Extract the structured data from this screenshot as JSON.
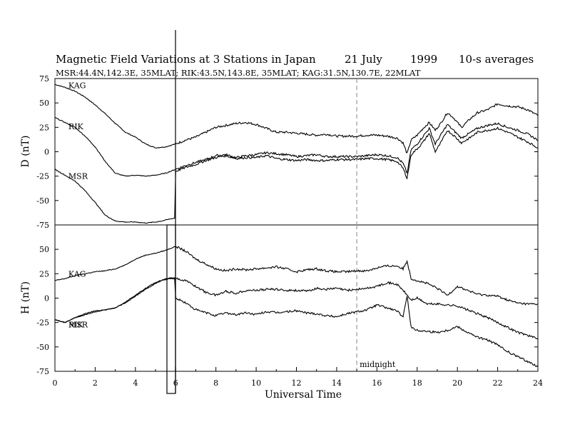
{
  "title": {
    "main": "Magnetic Field Variations at 3 Stations in Japan",
    "date": "21 July",
    "year": "1999",
    "averaging": "10-s averages"
  },
  "subtitle": "MSR:44.4N,142.3E, 35MLAT;   RIK:43.5N,143.8E, 35MLAT;   KAG:31.5N,130.7E, 22MLAT",
  "chart_data": [
    {
      "type": "line",
      "panel": "D",
      "ylabel": "D (nT)",
      "ylim": [
        -75,
        75
      ],
      "yticks": [
        75,
        50,
        25,
        0,
        -25,
        -50,
        -75
      ],
      "ytick_labels": [
        "75",
        "50",
        "25",
        "0",
        "-25",
        "-50",
        "-75"
      ],
      "xlim": [
        0,
        24
      ],
      "station_labels": [
        "KAG",
        "RIK",
        "MSR"
      ],
      "series": [
        {
          "name": "KAG",
          "x": [
            0,
            0.5,
            1,
            1.5,
            2,
            2.5,
            3,
            3.5,
            4,
            4.5,
            5,
            5.5,
            6,
            6.5,
            7,
            7.5,
            8,
            8.5,
            9,
            9.5,
            10,
            10.5,
            11,
            11.5,
            12,
            12.5,
            13,
            13.5,
            14,
            14.5,
            15,
            15.5,
            16,
            16.5,
            17,
            17.3,
            17.5,
            17.7,
            18,
            18.3,
            18.6,
            18.9,
            19.2,
            19.5,
            19.8,
            20.2,
            20.6,
            21,
            21.5,
            22,
            22.5,
            23,
            23.5,
            24
          ],
          "y": [
            69,
            66,
            62,
            56,
            48,
            39,
            29,
            20,
            15,
            8,
            4,
            5,
            8,
            12,
            15,
            20,
            25,
            27,
            29,
            30,
            28,
            24,
            20,
            20,
            19,
            18,
            17,
            18,
            16,
            16,
            16,
            17,
            17,
            16,
            14,
            9,
            -2,
            12,
            17,
            24,
            30,
            22,
            30,
            40,
            35,
            25,
            33,
            40,
            43,
            49,
            47,
            46,
            43,
            37
          ]
        },
        {
          "name": "RIK",
          "x": [
            0,
            0.5,
            1,
            1.5,
            2,
            2.5,
            3,
            3.5,
            4,
            4.5,
            5,
            5.5,
            6,
            6.5,
            7,
            7.5,
            8,
            8.5,
            9,
            9.5,
            10,
            10.5,
            11,
            11.5,
            12,
            12.5,
            13,
            13.5,
            14,
            14.5,
            15,
            15.5,
            16,
            16.5,
            17,
            17.3,
            17.5,
            17.7,
            18,
            18.3,
            18.6,
            18.9,
            19.2,
            19.5,
            19.8,
            20.2,
            20.6,
            21,
            21.5,
            22,
            22.5,
            23,
            23.5,
            24
          ],
          "y": [
            35,
            30,
            25,
            16,
            5,
            -10,
            -22,
            -25,
            -24,
            -25,
            -24,
            -22,
            -18,
            -14,
            -11,
            -8,
            -4,
            -3,
            -6,
            -4,
            -3,
            -1,
            -2,
            -3,
            -5,
            -4,
            -3,
            -5,
            -5,
            -5,
            -5,
            -4,
            -3,
            -4,
            -6,
            -12,
            -22,
            2,
            8,
            16,
            24,
            8,
            18,
            28,
            22,
            14,
            19,
            24,
            27,
            29,
            25,
            22,
            18,
            12
          ]
        },
        {
          "name": "MSR",
          "x": [
            0,
            0.5,
            1,
            1.5,
            2,
            2.5,
            3,
            3.5,
            4,
            4.5,
            5,
            5.3,
            5.5,
            5.7,
            5.95,
            6,
            6.5,
            7,
            7.5,
            8,
            8.5,
            9,
            9.5,
            10,
            10.5,
            11,
            11.5,
            12,
            12.5,
            13,
            13.5,
            14,
            14.5,
            15,
            15.5,
            16,
            16.5,
            17,
            17.3,
            17.5,
            17.7,
            18,
            18.3,
            18.6,
            18.9,
            19.2,
            19.5,
            19.8,
            20.2,
            20.6,
            21,
            21.5,
            22,
            22.5,
            23,
            23.5,
            24
          ],
          "y": [
            -18,
            -24,
            -30,
            -40,
            -52,
            -65,
            -71,
            -72,
            -72,
            -73,
            -72,
            -71,
            -70,
            -69,
            -68,
            -20,
            -16,
            -13,
            -9,
            -6,
            -4,
            -7,
            -6,
            -6,
            -4,
            -7,
            -8,
            -9,
            -8,
            -9,
            -9,
            -8,
            -8,
            -8,
            -7,
            -7,
            -8,
            -10,
            -17,
            -27,
            -3,
            3,
            10,
            19,
            0,
            10,
            22,
            17,
            9,
            14,
            20,
            22,
            24,
            20,
            15,
            10,
            4
          ]
        }
      ]
    },
    {
      "type": "line",
      "panel": "H",
      "ylabel": "H (nT)",
      "ylim": [
        -75,
        75
      ],
      "yticks": [
        75,
        50,
        25,
        0,
        -25,
        -50,
        -75
      ],
      "ytick_labels": [
        "",
        "50",
        "25",
        "0",
        "-25",
        "-50",
        "-75"
      ],
      "xlim": [
        0,
        24
      ],
      "xticks": [
        0,
        2,
        4,
        6,
        8,
        10,
        12,
        14,
        16,
        18,
        20,
        22,
        24
      ],
      "xtick_labels": [
        "0",
        "2",
        "4",
        "6",
        "8",
        "10",
        "12",
        "14",
        "16",
        "18",
        "20",
        "22",
        "24"
      ],
      "xlabel": "Universal Time",
      "station_labels": [
        "KAG",
        "MSR"
      ],
      "overlap_label": "RIK",
      "annotation": {
        "text": "midnight",
        "x": 15
      },
      "series": [
        {
          "name": "KAG",
          "x": [
            0,
            0.5,
            1,
            1.5,
            2,
            2.5,
            3,
            3.5,
            4,
            4.5,
            5,
            5.5,
            6,
            6.5,
            7,
            7.5,
            8,
            8.5,
            9,
            9.5,
            10,
            10.5,
            11,
            11.5,
            12,
            12.5,
            13,
            13.5,
            14,
            14.5,
            15,
            15.5,
            16,
            16.5,
            17,
            17.3,
            17.5,
            17.7,
            18,
            18.5,
            19,
            19.5,
            20,
            20.5,
            21,
            21.5,
            22,
            22.5,
            23,
            23.5,
            24
          ],
          "y": [
            18,
            20,
            23,
            25,
            27,
            28,
            30,
            34,
            40,
            44,
            46,
            49,
            53,
            48,
            40,
            35,
            30,
            28,
            30,
            29,
            30,
            31,
            32,
            30,
            27,
            29,
            30,
            28,
            27,
            27,
            28,
            28,
            31,
            33,
            33,
            30,
            38,
            20,
            18,
            15,
            10,
            3,
            12,
            8,
            4,
            3,
            2,
            -2,
            -5,
            -6,
            -6
          ]
        },
        {
          "name": "RIK",
          "x": [
            0,
            0.5,
            1,
            1.5,
            2,
            2.5,
            3,
            3.5,
            4,
            4.5,
            5,
            5.5,
            5.95,
            6,
            6.5,
            7,
            7.5,
            8,
            8.5,
            9,
            9.5,
            10,
            10.5,
            11,
            11.5,
            12,
            12.5,
            13,
            13.5,
            14,
            14.5,
            15,
            15.5,
            16,
            16.5,
            17,
            17.3,
            17.5,
            17.7,
            18,
            18.5,
            19,
            19.5,
            20,
            20.5,
            21,
            21.5,
            22,
            22.5,
            23,
            23.5,
            24
          ],
          "y": [
            -22,
            -25,
            -20,
            -16,
            -13,
            -12,
            -10,
            -4,
            3,
            10,
            16,
            20,
            21,
            20,
            18,
            12,
            6,
            3,
            7,
            5,
            8,
            8,
            9,
            9,
            8,
            8,
            7,
            10,
            9,
            10,
            8,
            9,
            10,
            12,
            16,
            14,
            8,
            3,
            -2,
            0,
            -6,
            -6,
            -7,
            -8,
            -12,
            -16,
            -20,
            -25,
            -30,
            -35,
            -38,
            -42
          ]
        },
        {
          "name": "MSR",
          "x": [
            0,
            0.5,
            1,
            1.5,
            2,
            2.5,
            3,
            3.5,
            4,
            4.5,
            5,
            5.3,
            5.5,
            5.7,
            5.95,
            6,
            6.5,
            7,
            7.5,
            8,
            8.5,
            9,
            9.5,
            10,
            10.5,
            11,
            11.5,
            12,
            12.5,
            13,
            13.5,
            14,
            14.5,
            15,
            15.5,
            16,
            16.5,
            17,
            17.3,
            17.5,
            17.7,
            18,
            18.5,
            19,
            19.5,
            20,
            20.5,
            21,
            21.5,
            22,
            22.5,
            23,
            23.5,
            24
          ],
          "y": [
            -22,
            -25,
            -20,
            -17,
            -14,
            -12,
            -10,
            -5,
            2,
            9,
            15,
            18,
            19,
            20,
            20,
            0,
            -5,
            -12,
            -15,
            -18,
            -15,
            -17,
            -15,
            -17,
            -14,
            -15,
            -14,
            -13,
            -15,
            -16,
            -18,
            -19,
            -16,
            -14,
            -12,
            -7,
            -10,
            -13,
            -20,
            3,
            -30,
            -33,
            -34,
            -35,
            -33,
            -29,
            -35,
            -40,
            -43,
            -48,
            -55,
            -60,
            -65,
            -70
          ]
        }
      ]
    }
  ]
}
